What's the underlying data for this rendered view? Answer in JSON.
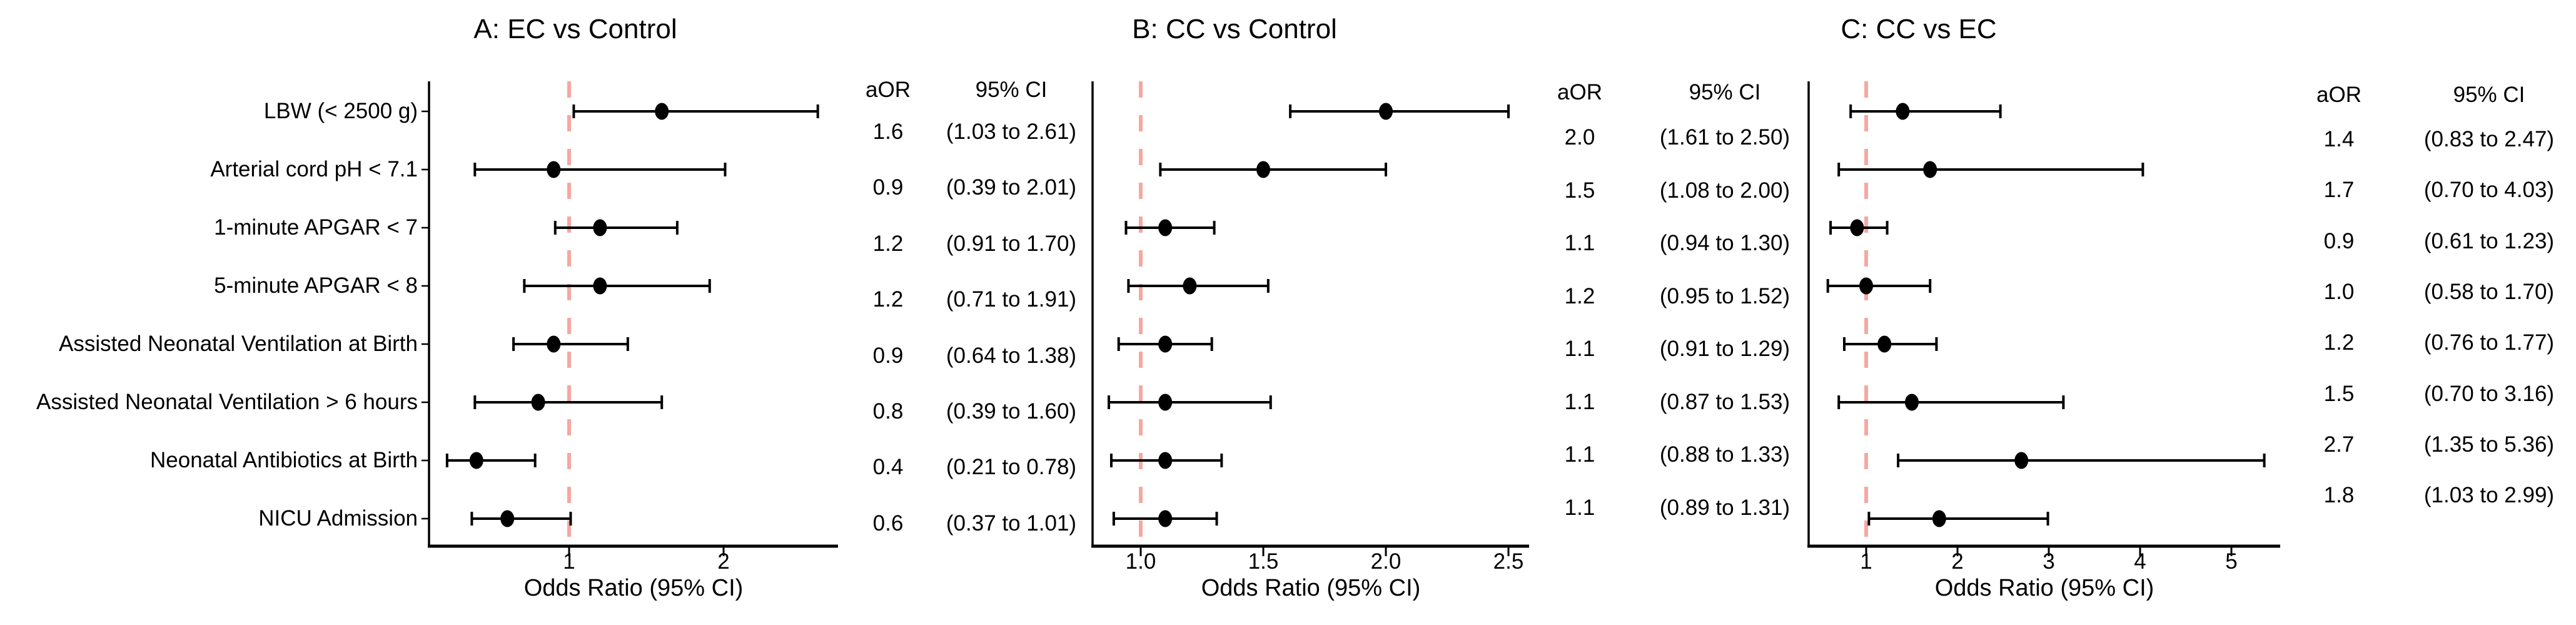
{
  "figure": {
    "background_color": "#FFFFFF",
    "text_color": "#000000",
    "marker_color": "#000000",
    "ref_line_color": "#F5A8A0"
  },
  "chart_data": {
    "type": "scatter",
    "subtype": "forest-plot",
    "xlabel": "Odds Ratio (95% CI)",
    "ref_line_at": 1,
    "grid": "off",
    "outcomes": [
      "LBW (< 2500 g)",
      "Arterial cord pH < 7.1",
      "1-minute APGAR < 7",
      "5-minute APGAR < 8",
      "Assisted Neonatal Ventilation at Birth",
      "Assisted Neonatal Ventilation > 6 hours",
      "Neonatal Antibiotics at Birth",
      "NICU Admission"
    ],
    "panels": [
      {
        "key": "A",
        "title": "A: EC vs Control",
        "col_headers": {
          "aor": "aOR",
          "ci": "95% CI"
        },
        "xtick_values": [
          1,
          2
        ],
        "xtick_labels": [
          "1",
          "2"
        ],
        "xlim": [
          0.1,
          2.75
        ],
        "show_row_labels": true,
        "rows": [
          {
            "aor": "1.6",
            "or": 1.6,
            "lo": 1.03,
            "hi": 2.61,
            "ci": "(1.03 to 2.61)"
          },
          {
            "aor": "0.9",
            "or": 0.9,
            "lo": 0.39,
            "hi": 2.01,
            "ci": "(0.39 to 2.01)"
          },
          {
            "aor": "1.2",
            "or": 1.2,
            "lo": 0.91,
            "hi": 1.7,
            "ci": "(0.91 to 1.70)"
          },
          {
            "aor": "1.2",
            "or": 1.2,
            "lo": 0.71,
            "hi": 1.91,
            "ci": "(0.71 to 1.91)"
          },
          {
            "aor": "0.9",
            "or": 0.9,
            "lo": 0.64,
            "hi": 1.38,
            "ci": "(0.64 to 1.38)"
          },
          {
            "aor": "0.8",
            "or": 0.8,
            "lo": 0.39,
            "hi": 1.6,
            "ci": "(0.39 to 1.60)"
          },
          {
            "aor": "0.4",
            "or": 0.4,
            "lo": 0.21,
            "hi": 0.78,
            "ci": "(0.21 to 0.78)"
          },
          {
            "aor": "0.6",
            "or": 0.6,
            "lo": 0.37,
            "hi": 1.01,
            "ci": "(0.37 to 1.01)"
          }
        ]
      },
      {
        "key": "B",
        "title": "B: CC vs Control",
        "col_headers": {
          "aor": "aOR",
          "ci": "95% CI"
        },
        "xtick_values": [
          1.0,
          1.5,
          2.0,
          2.5
        ],
        "xtick_labels": [
          "1.0",
          "1.5",
          "2.0",
          "2.5"
        ],
        "xlim": [
          0.81,
          2.6
        ],
        "show_row_labels": false,
        "rows": [
          {
            "aor": "2.0",
            "or": 2.0,
            "lo": 1.61,
            "hi": 2.5,
            "ci": "(1.61 to 2.50)"
          },
          {
            "aor": "1.5",
            "or": 1.5,
            "lo": 1.08,
            "hi": 2.0,
            "ci": "(1.08 to 2.00)"
          },
          {
            "aor": "1.1",
            "or": 1.1,
            "lo": 0.94,
            "hi": 1.3,
            "ci": "(0.94 to 1.30)"
          },
          {
            "aor": "1.2",
            "or": 1.2,
            "lo": 0.95,
            "hi": 1.52,
            "ci": "(0.95 to 1.52)"
          },
          {
            "aor": "1.1",
            "or": 1.1,
            "lo": 0.91,
            "hi": 1.29,
            "ci": "(0.91 to 1.29)"
          },
          {
            "aor": "1.1",
            "or": 1.1,
            "lo": 0.87,
            "hi": 1.53,
            "ci": "(0.87 to 1.53)"
          },
          {
            "aor": "1.1",
            "or": 1.1,
            "lo": 0.88,
            "hi": 1.33,
            "ci": "(0.88 to 1.33)"
          },
          {
            "aor": "1.1",
            "or": 1.1,
            "lo": 0.89,
            "hi": 1.31,
            "ci": "(0.89 to 1.31)"
          }
        ]
      },
      {
        "key": "C",
        "title": "C: CC vs EC",
        "col_headers": {
          "aor": "aOR",
          "ci": "95% CI"
        },
        "xtick_values": [
          1,
          2,
          3,
          4,
          5
        ],
        "xtick_labels": [
          "1",
          "2",
          "3",
          "4",
          "5"
        ],
        "xlim": [
          0.37,
          5.55
        ],
        "show_row_labels": false,
        "rows": [
          {
            "aor": "1.4",
            "or": 1.4,
            "lo": 0.83,
            "hi": 2.47,
            "ci": "(0.83 to 2.47)"
          },
          {
            "aor": "1.7",
            "or": 1.7,
            "lo": 0.7,
            "hi": 4.03,
            "ci": "(0.70 to 4.03)"
          },
          {
            "aor": "0.9",
            "or": 0.9,
            "lo": 0.61,
            "hi": 1.23,
            "ci": "(0.61 to 1.23)"
          },
          {
            "aor": "1.0",
            "or": 1.0,
            "lo": 0.58,
            "hi": 1.7,
            "ci": "(0.58 to 1.70)"
          },
          {
            "aor": "1.2",
            "or": 1.2,
            "lo": 0.76,
            "hi": 1.77,
            "ci": "(0.76 to 1.77)"
          },
          {
            "aor": "1.5",
            "or": 1.5,
            "lo": 0.7,
            "hi": 3.16,
            "ci": "(0.70 to 3.16)"
          },
          {
            "aor": "2.7",
            "or": 2.7,
            "lo": 1.35,
            "hi": 5.36,
            "ci": "(1.35 to 5.36)"
          },
          {
            "aor": "1.8",
            "or": 1.8,
            "lo": 1.03,
            "hi": 2.99,
            "ci": "(1.03 to 2.99)"
          }
        ]
      }
    ]
  }
}
